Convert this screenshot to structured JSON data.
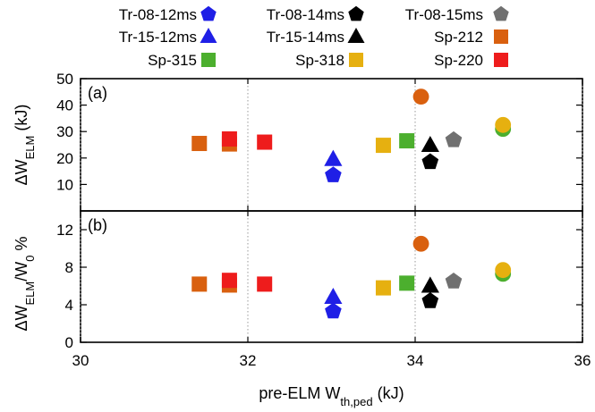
{
  "chart_data": {
    "type": "scatter",
    "legend": {
      "placement": "top",
      "entries": [
        {
          "label": "Tr-08-12ms",
          "marker": "pentagon",
          "color": "#1f1fe6"
        },
        {
          "label": "Tr-15-12ms",
          "marker": "triangle",
          "color": "#1f1fe6"
        },
        {
          "label": "Sp-315",
          "marker": "square",
          "color": "#4caf2e"
        },
        {
          "label": "Tr-08-14ms",
          "marker": "pentagon",
          "color": "#000000"
        },
        {
          "label": "Tr-15-14ms",
          "marker": "triangle",
          "color": "#000000"
        },
        {
          "label": "Sp-318",
          "marker": "square",
          "color": "#e6b010"
        },
        {
          "label": "Tr-08-15ms",
          "marker": "pentagon",
          "color": "#707070"
        },
        {
          "label": "Sp-212",
          "marker": "square",
          "color": "#d9600f"
        },
        {
          "label": "Sp-220",
          "marker": "square",
          "color": "#ee1c1c"
        }
      ]
    },
    "xaxis": {
      "label_main": "pre-ELM W",
      "label_sub": "th,ped",
      "label_unit": " (kJ)",
      "range": [
        30,
        36
      ],
      "ticks": [
        "30",
        "32",
        "34",
        "36"
      ],
      "tick_values": [
        30,
        32,
        34,
        36
      ]
    },
    "panels": [
      {
        "id": "a",
        "label": "(a)",
        "ylabel_main": "ΔW",
        "ylabel_sub": "ELM",
        "ylabel_unit": " (kJ)",
        "ylim": [
          0,
          50
        ],
        "ticks": [
          "10",
          "20",
          "30",
          "40",
          "50"
        ],
        "tick_values": [
          10,
          20,
          30,
          40,
          50
        ],
        "grid": "x",
        "points": [
          {
            "series": "Sp-212",
            "marker": "square",
            "color": "#d9600f",
            "x": 31.42,
            "y": 25.5
          },
          {
            "series": "Sp-212",
            "marker": "square",
            "color": "#d9600f",
            "x": 31.78,
            "y": 25.3
          },
          {
            "series": "Sp-220",
            "marker": "square",
            "color": "#ee1c1c",
            "x": 31.78,
            "y": 27.2
          },
          {
            "series": "Sp-220",
            "marker": "square",
            "color": "#ee1c1c",
            "x": 32.2,
            "y": 26.0
          },
          {
            "series": "Tr-15-12ms",
            "marker": "triangle",
            "color": "#1f1fe6",
            "x": 33.02,
            "y": 19.5
          },
          {
            "series": "Tr-08-12ms",
            "marker": "pentagon",
            "color": "#1f1fe6",
            "x": 33.02,
            "y": 13.5
          },
          {
            "series": "Sp-318",
            "marker": "square",
            "color": "#e6b010",
            "x": 33.62,
            "y": 24.8
          },
          {
            "series": "Sp-315",
            "marker": "square",
            "color": "#4caf2e",
            "x": 33.9,
            "y": 26.5
          },
          {
            "series": "",
            "marker": "circle",
            "color": "#d9600f",
            "x": 34.07,
            "y": 43.2
          },
          {
            "series": "Tr-15-14ms",
            "marker": "triangle",
            "color": "#000000",
            "x": 34.18,
            "y": 24.8
          },
          {
            "series": "Tr-08-14ms",
            "marker": "pentagon",
            "color": "#000000",
            "x": 34.18,
            "y": 18.5
          },
          {
            "series": "Tr-08-15ms",
            "marker": "pentagon",
            "color": "#707070",
            "x": 34.46,
            "y": 26.8
          },
          {
            "series": "",
            "marker": "circle",
            "color": "#4caf2e",
            "x": 35.05,
            "y": 31.0
          },
          {
            "series": "",
            "marker": "circle",
            "color": "#e6b010",
            "x": 35.05,
            "y": 32.5
          }
        ]
      },
      {
        "id": "b",
        "label": "(b)",
        "ylabel_main": "ΔW",
        "ylabel_sub": "ELM",
        "ylabel_mid": "/W",
        "ylabel_sub2": "0",
        "ylabel_unit": " %",
        "ylim": [
          0,
          14
        ],
        "ticks": [
          "0",
          "4",
          "8",
          "12"
        ],
        "tick_values": [
          0,
          4,
          8,
          12
        ],
        "grid": "x",
        "points": [
          {
            "series": "Sp-212",
            "marker": "square",
            "color": "#d9600f",
            "x": 31.42,
            "y": 6.2
          },
          {
            "series": "Sp-212",
            "marker": "square",
            "color": "#d9600f",
            "x": 31.78,
            "y": 6.1
          },
          {
            "series": "Sp-220",
            "marker": "square",
            "color": "#ee1c1c",
            "x": 31.78,
            "y": 6.6
          },
          {
            "series": "Sp-220",
            "marker": "square",
            "color": "#ee1c1c",
            "x": 32.2,
            "y": 6.2
          },
          {
            "series": "Tr-15-12ms",
            "marker": "triangle",
            "color": "#1f1fe6",
            "x": 33.02,
            "y": 4.8
          },
          {
            "series": "Tr-08-12ms",
            "marker": "pentagon",
            "color": "#1f1fe6",
            "x": 33.02,
            "y": 3.3
          },
          {
            "series": "Sp-318",
            "marker": "square",
            "color": "#e6b010",
            "x": 33.62,
            "y": 5.8
          },
          {
            "series": "Sp-315",
            "marker": "square",
            "color": "#4caf2e",
            "x": 33.9,
            "y": 6.3
          },
          {
            "series": "",
            "marker": "circle",
            "color": "#d9600f",
            "x": 34.07,
            "y": 10.5
          },
          {
            "series": "Tr-15-14ms",
            "marker": "triangle",
            "color": "#000000",
            "x": 34.18,
            "y": 6.0
          },
          {
            "series": "Tr-08-14ms",
            "marker": "pentagon",
            "color": "#000000",
            "x": 34.18,
            "y": 4.4
          },
          {
            "series": "Tr-08-15ms",
            "marker": "pentagon",
            "color": "#707070",
            "x": 34.46,
            "y": 6.5
          },
          {
            "series": "",
            "marker": "circle",
            "color": "#4caf2e",
            "x": 35.05,
            "y": 7.3
          },
          {
            "series": "",
            "marker": "circle",
            "color": "#e6b010",
            "x": 35.05,
            "y": 7.7
          }
        ]
      }
    ]
  }
}
